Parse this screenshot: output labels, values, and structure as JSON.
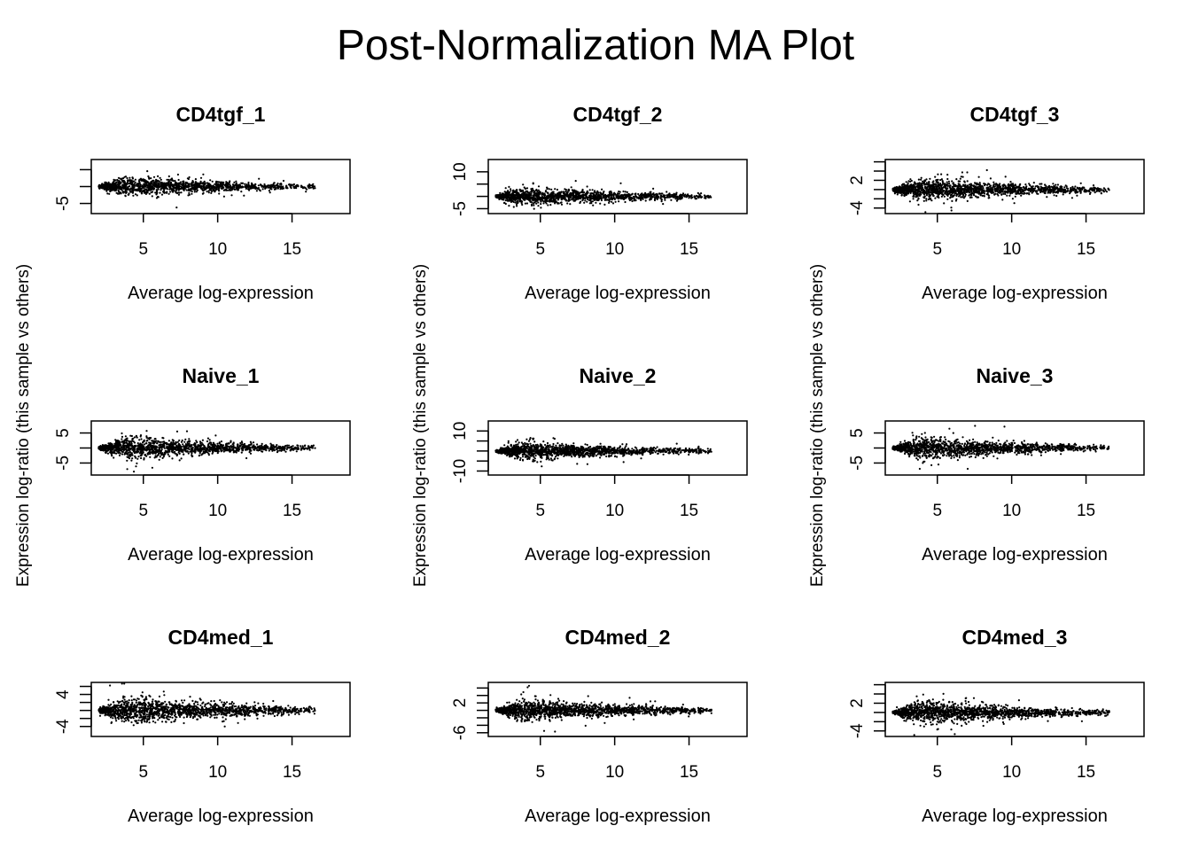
{
  "title": "Post-Normalization MA Plot",
  "chart_data": [
    {
      "type": "scatter",
      "title": "CD4tgf_1",
      "xlabel": "Average log-expression",
      "ylabel": "Expression log-ratio (this sample vs others)",
      "xlim": [
        1.5,
        18.9
      ],
      "ylim": [
        -8,
        8
      ],
      "xticks": [
        5,
        10,
        15
      ],
      "yticks": [
        -5,
        0,
        5
      ],
      "ytick_labels": [
        "-5",
        "",
        ""
      ],
      "spread": 3.2,
      "n_points": 1400
    },
    {
      "type": "scatter",
      "title": "CD4tgf_2",
      "xlabel": "Average log-expression",
      "ylabel": "Expression log-ratio (this sample vs others)",
      "xlim": [
        1.5,
        18.9
      ],
      "ylim": [
        -7,
        15
      ],
      "xticks": [
        5,
        10,
        15
      ],
      "yticks": [
        -5,
        0,
        5,
        10
      ],
      "ytick_labels": [
        "-5",
        "",
        "",
        "10"
      ],
      "spread": 4,
      "n_points": 1400
    },
    {
      "type": "scatter",
      "title": "CD4tgf_3",
      "xlabel": "Average log-expression",
      "ylabel": "Expression log-ratio (this sample vs others)",
      "xlim": [
        1.5,
        18.9
      ],
      "ylim": [
        -5.2,
        6.5
      ],
      "xticks": [
        5,
        10,
        15
      ],
      "yticks": [
        -4,
        -2,
        0,
        2,
        4,
        6
      ],
      "ytick_labels": [
        "-4",
        "",
        "",
        "2",
        "",
        ""
      ],
      "spread": 2.6,
      "n_points": 1600
    },
    {
      "type": "scatter",
      "title": "Naive_1",
      "xlabel": "Average log-expression",
      "ylabel": "Expression log-ratio (this sample vs others)",
      "xlim": [
        1.5,
        18.9
      ],
      "ylim": [
        -9,
        9
      ],
      "xticks": [
        5,
        10,
        15
      ],
      "yticks": [
        -5,
        0,
        5
      ],
      "ytick_labels": [
        "-5",
        "",
        "5"
      ],
      "spread": 4,
      "n_points": 1500
    },
    {
      "type": "scatter",
      "title": "Naive_2",
      "xlabel": "Average log-expression",
      "ylabel": "Expression log-ratio (this sample vs others)",
      "xlim": [
        1.5,
        18.9
      ],
      "ylim": [
        -12,
        15
      ],
      "xticks": [
        5,
        10,
        15
      ],
      "yticks": [
        -10,
        -5,
        0,
        5,
        10
      ],
      "ytick_labels": [
        "-10",
        "",
        "",
        "",
        "10"
      ],
      "spread": 5,
      "n_points": 1500
    },
    {
      "type": "scatter",
      "title": "Naive_3",
      "xlabel": "Average log-expression",
      "ylabel": "Expression log-ratio (this sample vs others)",
      "xlim": [
        1.5,
        18.9
      ],
      "ylim": [
        -9,
        9
      ],
      "xticks": [
        5,
        10,
        15
      ],
      "yticks": [
        -5,
        0,
        5
      ],
      "ytick_labels": [
        "-5",
        "",
        "5"
      ],
      "spread": 4,
      "n_points": 1500
    },
    {
      "type": "scatter",
      "title": "CD4med_1",
      "xlabel": "Average log-expression",
      "ylabel": "Expression log-ratio (this sample vs others)",
      "xlim": [
        1.5,
        18.9
      ],
      "ylim": [
        -6.5,
        7
      ],
      "xticks": [
        5,
        10,
        15
      ],
      "yticks": [
        -4,
        -2,
        0,
        2,
        4,
        6
      ],
      "ytick_labels": [
        "-4",
        "",
        "",
        "",
        "4",
        ""
      ],
      "spread": 3.5,
      "n_points": 1600
    },
    {
      "type": "scatter",
      "title": "CD4med_2",
      "xlabel": "Average log-expression",
      "ylabel": "Expression log-ratio (this sample vs others)",
      "xlim": [
        1.5,
        18.9
      ],
      "ylim": [
        -7,
        7.5
      ],
      "xticks": [
        5,
        10,
        15
      ],
      "yticks": [
        -6,
        -4,
        -2,
        0,
        2,
        4,
        6
      ],
      "ytick_labels": [
        "-6",
        "",
        "",
        "",
        "2",
        "",
        ""
      ],
      "spread": 3,
      "n_points": 1600
    },
    {
      "type": "scatter",
      "title": "CD4med_3",
      "xlabel": "Average log-expression",
      "ylabel": "Expression log-ratio (this sample vs others)",
      "xlim": [
        1.5,
        18.9
      ],
      "ylim": [
        -5.2,
        6.5
      ],
      "xticks": [
        5,
        10,
        15
      ],
      "yticks": [
        -4,
        -2,
        0,
        2,
        4,
        6
      ],
      "ytick_labels": [
        "-4",
        "",
        "",
        "2",
        "",
        ""
      ],
      "spread": 2.6,
      "n_points": 1600
    }
  ]
}
